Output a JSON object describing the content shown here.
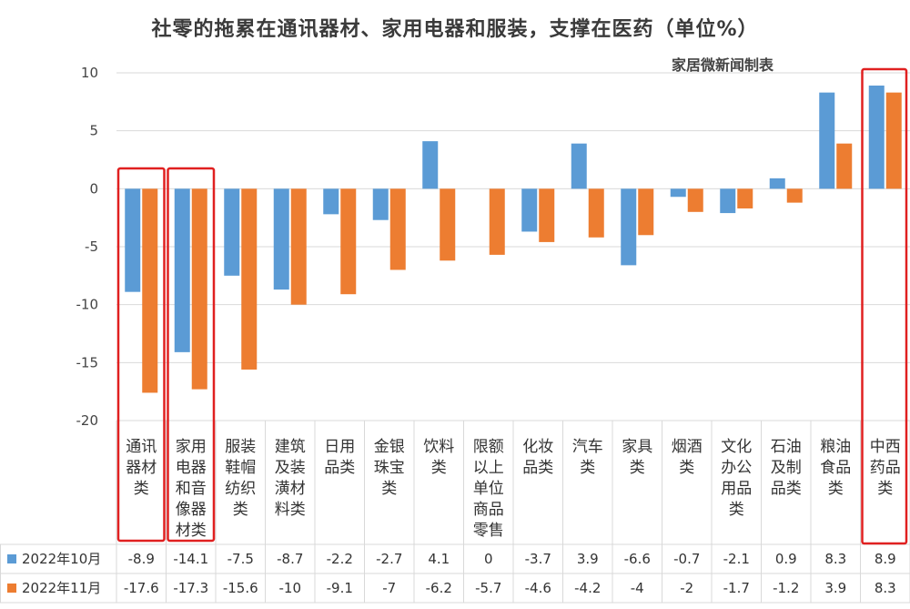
{
  "chart_data": {
    "type": "bar",
    "title": "社零的拖累在通讯器材、家用电器和服装，支撑在医药（单位%）",
    "source": "家居微新闻制表",
    "categories": [
      "通讯器材类",
      "家用电器和音像器材类",
      "服装鞋帽纺织类",
      "建筑及装潢材料类",
      "日用品类",
      "金银珠宝类",
      "饮料类",
      "限额以上单位商品零售",
      "化妆品类",
      "汽车类",
      "家具类",
      "烟酒类",
      "文化办公用品类",
      "石油及制品类",
      "粮油食品类",
      "中西药品类"
    ],
    "category_lines": [
      [
        "通讯",
        "器材",
        "类"
      ],
      [
        "家用",
        "电器",
        "和音",
        "像器",
        "材类"
      ],
      [
        "服装",
        "鞋帽",
        "纺织",
        "类"
      ],
      [
        "建筑",
        "及装",
        "潢材",
        "料类"
      ],
      [
        "日用",
        "品类"
      ],
      [
        "金银",
        "珠宝",
        "类"
      ],
      [
        "饮料",
        "类"
      ],
      [
        "限额",
        "以上",
        "单位",
        "商品",
        "零售"
      ],
      [
        "化妆",
        "品类"
      ],
      [
        "汽车",
        "类"
      ],
      [
        "家具",
        "类"
      ],
      [
        "烟酒",
        "类"
      ],
      [
        "文化",
        "办公",
        "用品",
        "类"
      ],
      [
        "石油",
        "及制",
        "品类"
      ],
      [
        "粮油",
        "食品",
        "类"
      ],
      [
        "中西",
        "药品",
        "类"
      ]
    ],
    "series": [
      {
        "name": "2022年10月",
        "color": "#5b9bd5",
        "values": [
          -8.9,
          -14.1,
          -7.5,
          -8.7,
          -2.2,
          -2.7,
          4.1,
          0,
          -3.7,
          3.9,
          -6.6,
          -0.7,
          -2.1,
          0.9,
          8.3,
          8.9
        ]
      },
      {
        "name": "2022年11月",
        "color": "#ed7d31",
        "values": [
          -17.6,
          -17.3,
          -15.6,
          -10,
          -9.1,
          -7,
          -6.2,
          -5.7,
          -4.6,
          -4.2,
          -4,
          -2,
          -1.7,
          -1.2,
          3.9,
          8.3
        ]
      }
    ],
    "table_labels": {
      "s0": [
        "-8.9",
        "-14.1",
        "-7.5",
        "-8.7",
        "-2.2",
        "-2.7",
        "4.1",
        "0",
        "-3.7",
        "3.9",
        "-6.6",
        "-0.7",
        "-2.1",
        "0.9",
        "8.3",
        "8.9"
      ],
      "s1": [
        "-17.6",
        "-17.3",
        "-15.6",
        "-10",
        "-9.1",
        "-7",
        "-6.2",
        "-5.7",
        "-4.6",
        "-4.2",
        "-4",
        "-2",
        "-1.7",
        "-1.2",
        "3.9",
        "8.3"
      ]
    },
    "ylim": [
      -20,
      10
    ],
    "yticks": [
      "10",
      "5",
      "0",
      "-5",
      "-10",
      "-15",
      "-20"
    ],
    "ytick_values": [
      10,
      5,
      0,
      -5,
      -10,
      -15,
      -20
    ],
    "highlighted_categories": [
      "通讯器材类",
      "家用电器和音像器材类",
      "中西药品类"
    ],
    "highlight_color": "#e02020",
    "grid": true
  }
}
